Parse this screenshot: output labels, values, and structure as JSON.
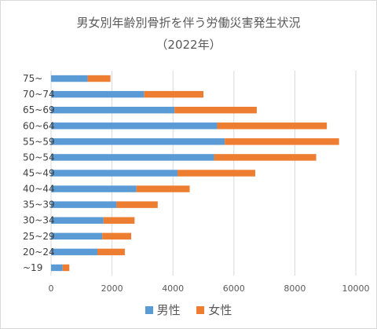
{
  "chart_data": {
    "type": "bar",
    "orientation": "horizontal",
    "stacked": true,
    "title": "男女別年齢別骨折を伴う労働災害発生状況",
    "subtitle": "（2022年）",
    "categories": [
      "~19",
      "20~24",
      "25~29",
      "30~34",
      "35~39",
      "40~44",
      "45~49",
      "50~54",
      "55~59",
      "60~64",
      "65~69",
      "70~74",
      "75~"
    ],
    "series": [
      {
        "name": "男性",
        "color": "#5b9bd5",
        "values": [
          380,
          1520,
          1680,
          1720,
          2150,
          2800,
          4150,
          5350,
          5700,
          5450,
          4050,
          3050,
          1200
        ]
      },
      {
        "name": "女性",
        "color": "#ed7d31",
        "values": [
          220,
          900,
          950,
          1020,
          1350,
          1750,
          2550,
          3350,
          3750,
          3600,
          2700,
          1950,
          750
        ]
      }
    ],
    "xlim": [
      0,
      10000
    ],
    "xticks": [
      0,
      2000,
      4000,
      6000,
      8000,
      10000
    ],
    "grid": true,
    "legend": "bottom"
  }
}
